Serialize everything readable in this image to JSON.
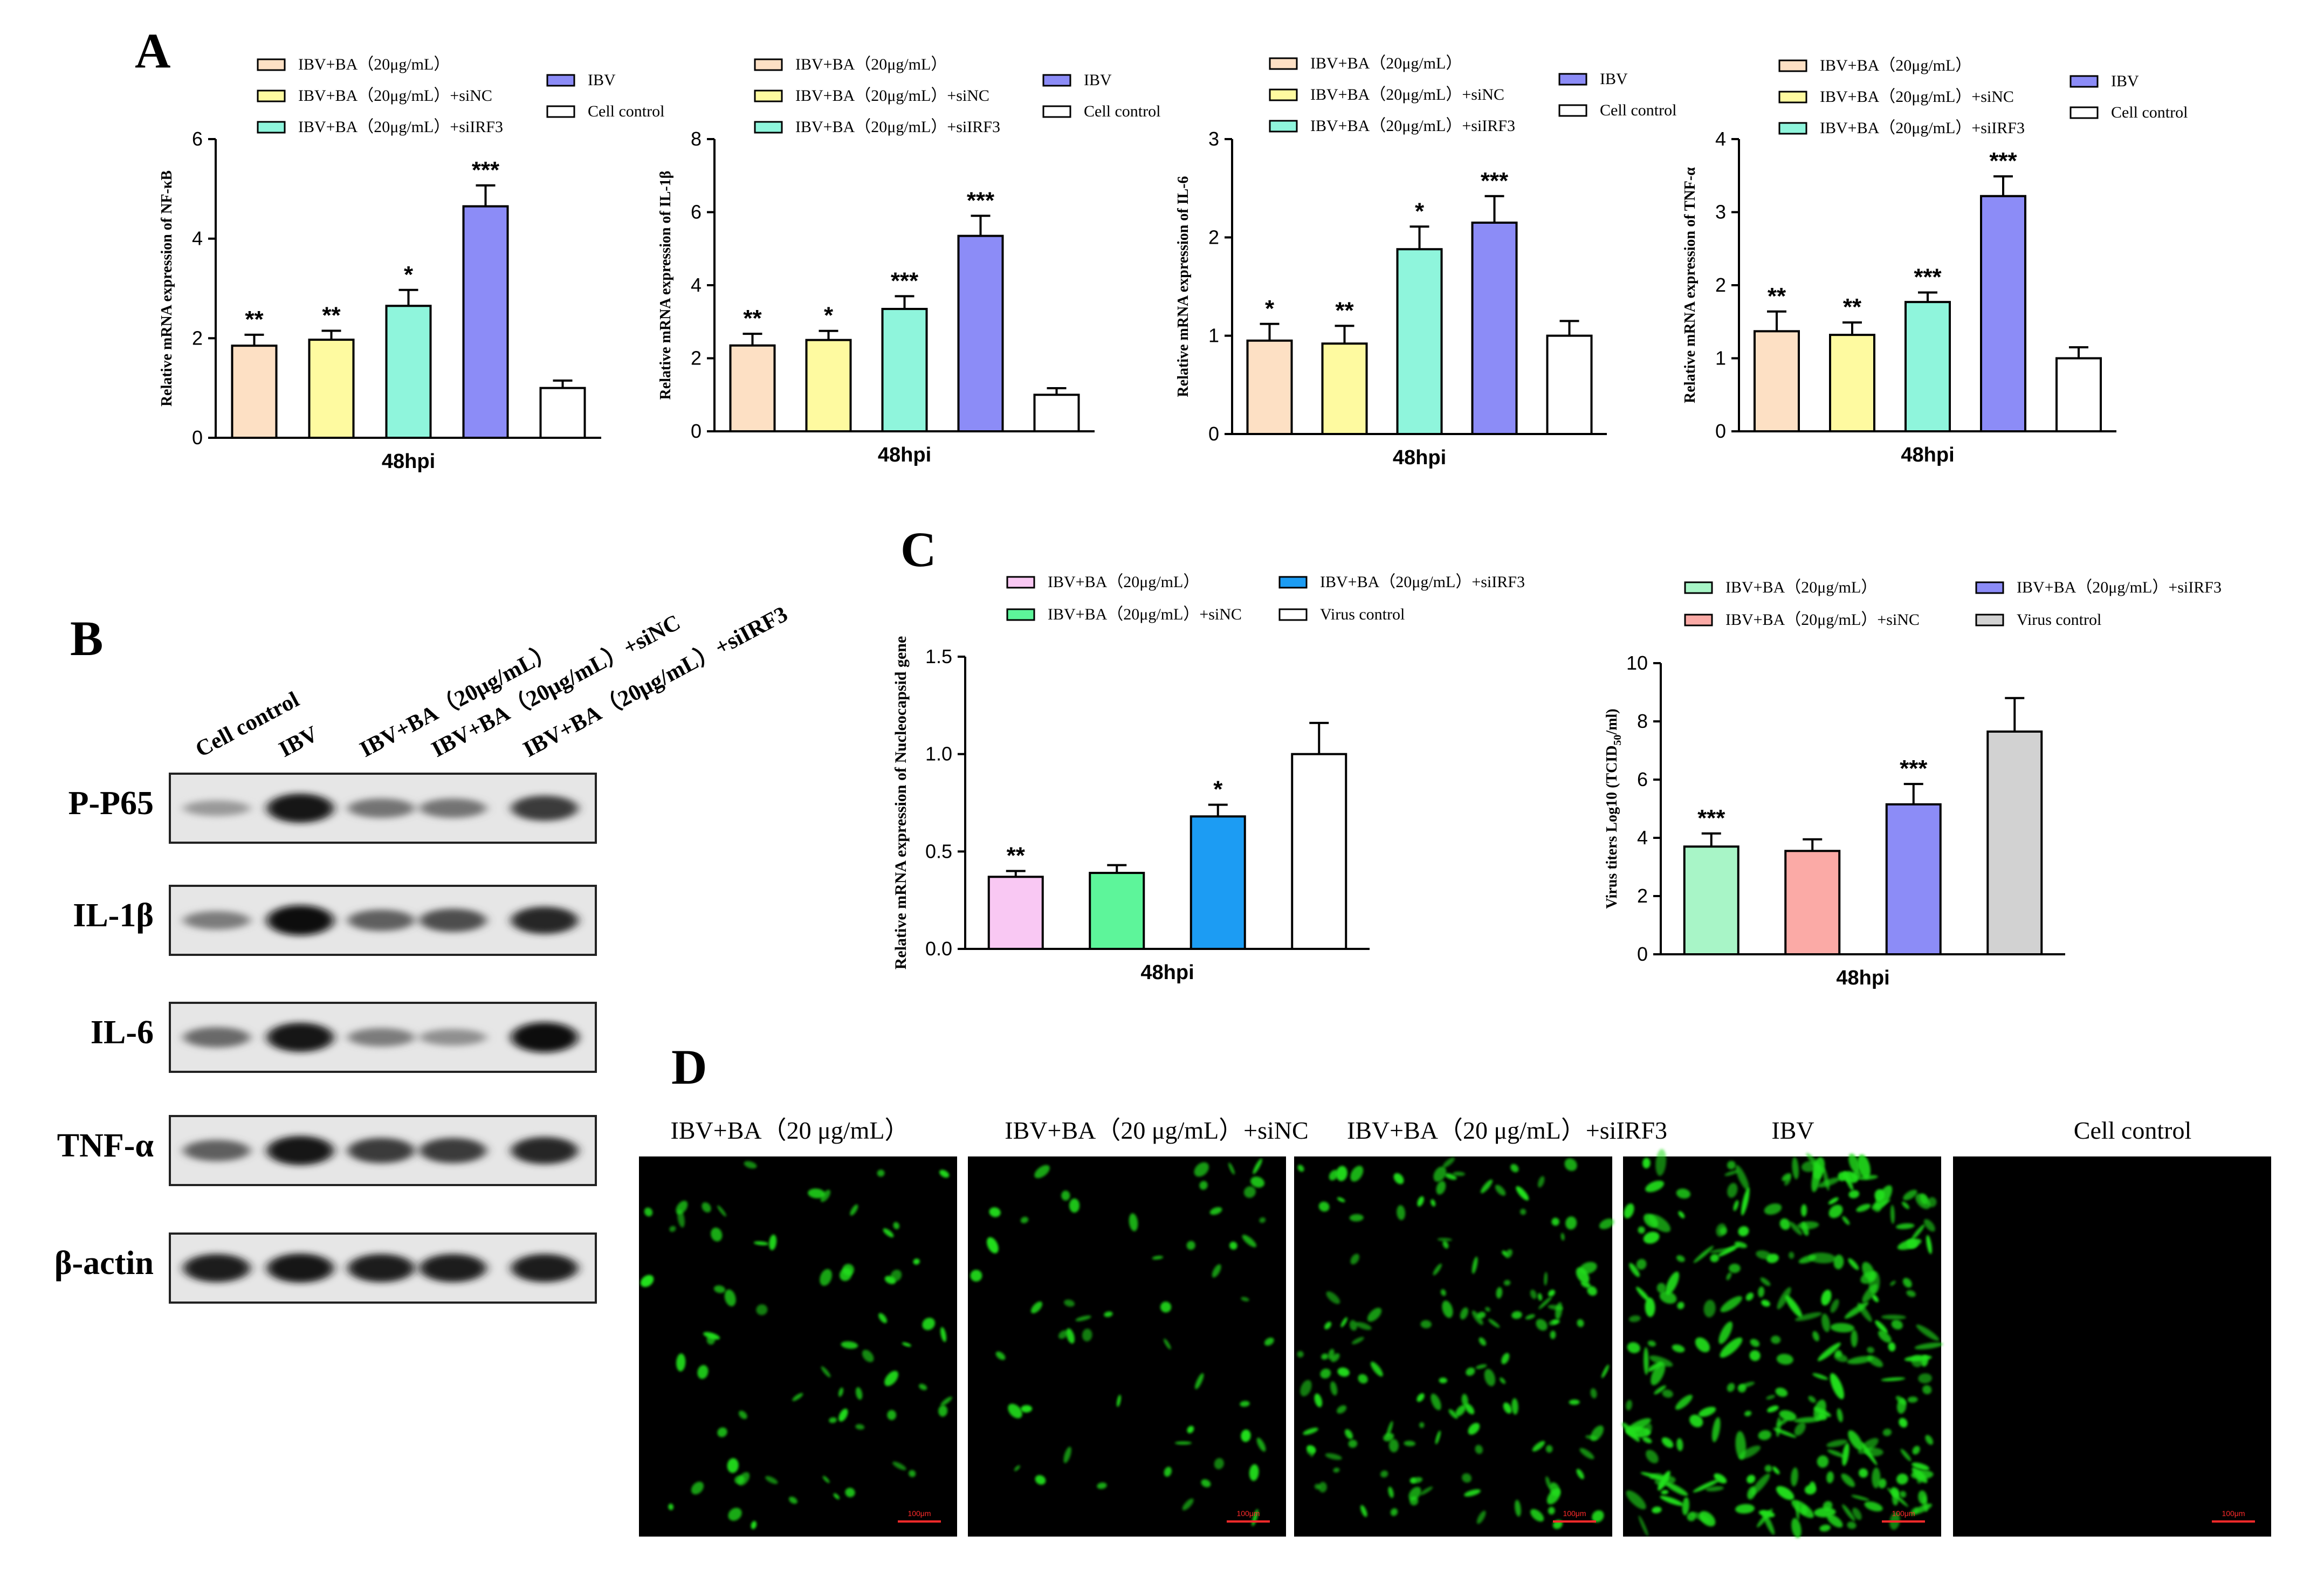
{
  "panel_labels": {
    "a": "A",
    "b": "B",
    "c": "C",
    "d": "D"
  },
  "panel_a": {
    "legend_items": [
      {
        "label": "IBV+BA（20μg/mL）",
        "color": "#fde0c4"
      },
      {
        "label": "IBV+BA（20μg/mL）+siNC",
        "color": "#fefaa0"
      },
      {
        "label": "IBV+BA（20μg/mL）+siIRF3",
        "color": "#8ff5dc"
      },
      {
        "label": "IBV",
        "color": "#8c8cf7"
      },
      {
        "label": "Cell control",
        "color": "#ffffff"
      }
    ]
  },
  "chart_data": [
    {
      "type": "bar",
      "panel": "A",
      "categories": [
        "IBV+BA（20μg/mL）",
        "IBV+BA（20μg/mL）+siNC",
        "IBV+BA（20μg/mL）+siIRF3",
        "IBV",
        "Cell control"
      ],
      "values": [
        1.85,
        1.97,
        2.65,
        4.65,
        1.0
      ],
      "errors": [
        0.22,
        0.18,
        0.32,
        0.42,
        0.15
      ],
      "significance": [
        "**",
        "**",
        "*",
        "***",
        ""
      ],
      "colors": [
        "#fde0c4",
        "#fefaa0",
        "#8ff5dc",
        "#8c8cf7",
        "#ffffff"
      ],
      "xlabel": "48hpi",
      "ylabel": "Relative mRNA expression of NF-κB",
      "ylim": [
        0,
        6
      ],
      "yticks": [
        "0",
        "2",
        "4",
        "6"
      ],
      "tick_values": [
        0,
        2,
        4,
        6
      ],
      "legend": "top"
    },
    {
      "type": "bar",
      "panel": "A",
      "categories": [
        "IBV+BA（20μg/mL）",
        "IBV+BA（20μg/mL）+siNC",
        "IBV+BA（20μg/mL）+siIRF3",
        "IBV",
        "Cell control"
      ],
      "values": [
        2.35,
        2.5,
        3.35,
        5.35,
        1.0
      ],
      "errors": [
        0.32,
        0.25,
        0.35,
        0.55,
        0.18
      ],
      "significance": [
        "**",
        "*",
        "***",
        "***",
        ""
      ],
      "colors": [
        "#fde0c4",
        "#fefaa0",
        "#8ff5dc",
        "#8c8cf7",
        "#ffffff"
      ],
      "xlabel": "48hpi",
      "ylabel": "Relative mRNA expression of IL-1β",
      "ylim": [
        0,
        8
      ],
      "yticks": [
        "0",
        "2",
        "4",
        "6",
        "8"
      ],
      "tick_values": [
        0,
        2,
        4,
        6,
        8
      ],
      "legend": "top"
    },
    {
      "type": "bar",
      "panel": "A",
      "categories": [
        "IBV+BA（20μg/mL）",
        "IBV+BA（20μg/mL）+siNC",
        "IBV+BA（20μg/mL）+siIRF3",
        "IBV",
        "Cell control"
      ],
      "values": [
        0.95,
        0.92,
        1.88,
        2.15,
        1.0
      ],
      "errors": [
        0.17,
        0.18,
        0.23,
        0.27,
        0.15
      ],
      "significance": [
        "*",
        "**",
        "*",
        "***",
        ""
      ],
      "colors": [
        "#fde0c4",
        "#fefaa0",
        "#8ff5dc",
        "#8c8cf7",
        "#ffffff"
      ],
      "xlabel": "48hpi",
      "ylabel": "Relative mRNA expression of IL-6",
      "ylim": [
        0,
        3
      ],
      "yticks": [
        "0",
        "1",
        "2",
        "3"
      ],
      "tick_values": [
        0,
        1,
        2,
        3
      ],
      "legend": "top"
    },
    {
      "type": "bar",
      "panel": "A",
      "categories": [
        "IBV+BA（20μg/mL）",
        "IBV+BA（20μg/mL）+siNC",
        "IBV+BA（20μg/mL）+siIRF3",
        "IBV",
        "Cell control"
      ],
      "values": [
        1.37,
        1.32,
        1.77,
        3.22,
        1.0
      ],
      "errors": [
        0.27,
        0.17,
        0.13,
        0.27,
        0.15
      ],
      "significance": [
        "**",
        "**",
        "***",
        "***",
        ""
      ],
      "colors": [
        "#fde0c4",
        "#fefaa0",
        "#8ff5dc",
        "#8c8cf7",
        "#ffffff"
      ],
      "xlabel": "48hpi",
      "ylabel": "Relative mRNA expression of TNF-α",
      "ylim": [
        0,
        4
      ],
      "yticks": [
        "0",
        "1",
        "2",
        "3",
        "4"
      ],
      "tick_values": [
        0,
        1,
        2,
        3,
        4
      ],
      "legend": "top"
    },
    {
      "type": "bar",
      "panel": "C",
      "categories": [
        "IBV+BA（20μg/mL）",
        "IBV+BA（20μg/mL）+siNC",
        "IBV+BA（20μg/mL）+siIRF3",
        "Virus control"
      ],
      "values": [
        0.37,
        0.39,
        0.68,
        1.0
      ],
      "errors": [
        0.03,
        0.04,
        0.06,
        0.16
      ],
      "significance": [
        "**",
        "",
        "*",
        ""
      ],
      "colors": [
        "#f9c8f3",
        "#5df59a",
        "#1c9cf3",
        "#ffffff"
      ],
      "xlabel": "48hpi",
      "ylabel": "Relative mRNA expression of Nucleocapsid gene",
      "ylim": [
        0,
        1.5
      ],
      "yticks": [
        "0.0",
        "0.5",
        "1.0",
        "1.5"
      ],
      "tick_values": [
        0,
        0.5,
        1.0,
        1.5
      ],
      "legend": "top"
    },
    {
      "type": "bar",
      "panel": "C",
      "categories": [
        "IBV+BA（20μg/mL）",
        "IBV+BA（20μg/mL）+siNC",
        "IBV+BA（20μg/mL）+siIRF3",
        "Virus control"
      ],
      "values": [
        3.7,
        3.55,
        5.15,
        7.65
      ],
      "errors": [
        0.45,
        0.4,
        0.7,
        1.15
      ],
      "significance": [
        "***",
        "",
        "***",
        ""
      ],
      "colors": [
        "#a8f5c7",
        "#fbaaa6",
        "#8c8cf7",
        "#d2d2d2"
      ],
      "xlabel": "48hpi",
      "ylabel": "Virus titers Log10 (TCID",
      "ylabel_sub": "50",
      "ylabel_end": "/ml)",
      "ylim": [
        0,
        10
      ],
      "yticks": [
        "0",
        "2",
        "4",
        "6",
        "8",
        "10"
      ],
      "tick_values": [
        0,
        2,
        4,
        6,
        8,
        10
      ],
      "legend": "top"
    }
  ],
  "panel_b": {
    "lanes": [
      "Cell control",
      "IBV",
      "IBV+BA（20μg/mL）",
      "IBV+BA（20μg/mL）+siNC",
      "IBV+BA（20μg/mL）+siIRF3"
    ],
    "proteins": [
      {
        "label": "P-P65",
        "intensity": [
          0.25,
          0.95,
          0.45,
          0.45,
          0.75
        ]
      },
      {
        "label": "IL-1β",
        "intensity": [
          0.4,
          1.0,
          0.55,
          0.65,
          0.85
        ]
      },
      {
        "label": "IL-6",
        "intensity": [
          0.5,
          0.95,
          0.4,
          0.3,
          1.0
        ]
      },
      {
        "label": "TNF-α",
        "intensity": [
          0.55,
          0.95,
          0.75,
          0.75,
          0.85
        ]
      },
      {
        "label": "β-actin",
        "intensity": [
          0.9,
          0.95,
          0.9,
          0.9,
          0.9
        ]
      }
    ]
  },
  "panel_d": {
    "images": [
      {
        "title": "IBV+BA（20 μg/mL）",
        "scale_bar": "100μm",
        "cell_density": 0.25
      },
      {
        "title": "IBV+BA（20 μg/mL）+siNC",
        "scale_bar": "100μm",
        "cell_density": 0.2
      },
      {
        "title": "IBV+BA（20 μg/mL）+siIRF3",
        "scale_bar": "100μm",
        "cell_density": 0.55
      },
      {
        "title": "IBV",
        "scale_bar": "100μm",
        "cell_density": 1.0
      },
      {
        "title": "Cell control",
        "scale_bar": "100μm",
        "cell_density": 0
      }
    ]
  }
}
